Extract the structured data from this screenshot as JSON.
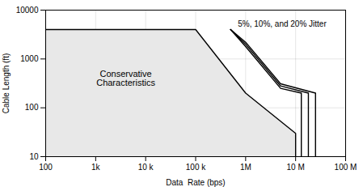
{
  "chart_data": {
    "type": "line",
    "xlabel": "Data  Rate (bps)",
    "ylabel": "Cable Length (ft)",
    "log": true,
    "grid": true,
    "xlim": [
      100,
      100000000
    ],
    "ylim": [
      10,
      10000
    ],
    "xticks": [
      100,
      {
        "value": 1000,
        "label": "1k"
      },
      {
        "value": 10000,
        "label": "10 k"
      },
      {
        "value": 100000,
        "label": "100 k"
      },
      {
        "value": 1000000,
        "label": "1M"
      },
      {
        "value": 10000000,
        "label": "10 M"
      },
      {
        "value": 100000000,
        "label": "100 M"
      }
    ],
    "yticks": [
      10,
      100,
      1000,
      10000
    ],
    "series": [
      {
        "type": "area",
        "color": "#e8e8e8",
        "x": [
          100,
          100000,
          1000000,
          10000000,
          10000000
        ],
        "values": [
          4000,
          4000,
          200,
          30,
          10
        ]
      },
      {
        "type": "line",
        "color": "#000000",
        "x": [
          100,
          100000,
          1000000,
          10000000,
          10000000
        ],
        "values": [
          4000,
          4000,
          200,
          30,
          10
        ]
      },
      {
        "type": "line",
        "color": "#000000",
        "x": [
          500000,
          1000000,
          5000000,
          13000000,
          13000000
        ],
        "values": [
          4000,
          1800,
          250,
          200,
          10
        ]
      },
      {
        "type": "line",
        "color": "#000000",
        "x": [
          500000,
          1000000,
          5000000,
          18000000,
          18000000
        ],
        "values": [
          4000,
          2000,
          280,
          200,
          10
        ]
      },
      {
        "type": "line",
        "color": "#000000",
        "x": [
          500000,
          1000000,
          5000000,
          25000000,
          25000000
        ],
        "values": [
          4000,
          2200,
          310,
          200,
          10
        ]
      }
    ],
    "annotations": [
      {
        "text": "Conservative\nCharacteristics",
        "x": 4000,
        "y": 400
      },
      {
        "text": "5%, 10%, and 20% Jitter",
        "x": 700000,
        "y": 4500
      }
    ]
  }
}
